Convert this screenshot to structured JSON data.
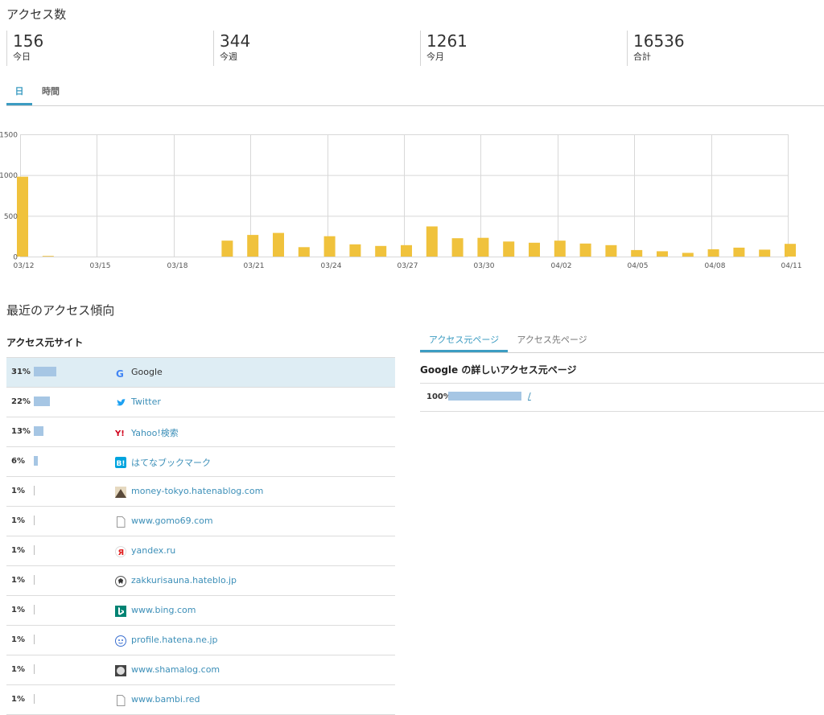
{
  "access": {
    "title": "アクセス数",
    "stats": [
      {
        "value": "156",
        "label": "今日"
      },
      {
        "value": "344",
        "label": "今週"
      },
      {
        "value": "1261",
        "label": "今月"
      },
      {
        "value": "16536",
        "label": "合計"
      }
    ],
    "tabs": [
      {
        "label": "日",
        "active": true
      },
      {
        "label": "時間",
        "active": false
      }
    ]
  },
  "chart_data": {
    "type": "bar",
    "color": "#f0c23c",
    "ylim": [
      0,
      1500
    ],
    "yticks": [
      "1500",
      "1000",
      "500",
      "0"
    ],
    "xticks": [
      "03/12",
      "03/15",
      "03/18",
      "03/21",
      "03/24",
      "03/27",
      "03/30",
      "04/02",
      "04/05",
      "04/08",
      "04/11"
    ],
    "categories": [
      "03/12",
      "03/13",
      "03/14",
      "03/15",
      "03/16",
      "03/17",
      "03/18",
      "03/19",
      "03/20",
      "03/21",
      "03/22",
      "03/23",
      "03/24",
      "03/25",
      "03/26",
      "03/27",
      "03/28",
      "03/29",
      "03/30",
      "03/31",
      "04/01",
      "04/02",
      "04/03",
      "04/04",
      "04/05",
      "04/06",
      "04/07",
      "04/08",
      "04/09",
      "04/10",
      "04/11"
    ],
    "values": [
      980,
      8,
      0,
      0,
      0,
      0,
      0,
      0,
      195,
      265,
      290,
      115,
      250,
      150,
      130,
      140,
      370,
      225,
      230,
      185,
      170,
      195,
      160,
      140,
      80,
      65,
      45,
      90,
      110,
      85,
      156
    ]
  },
  "trend": {
    "title": "最近のアクセス傾向",
    "sources_title": "アクセス元サイト",
    "sources": [
      {
        "pct": "31%",
        "ratio": 0.31,
        "name": "Google",
        "icon": "google-icon"
      },
      {
        "pct": "22%",
        "ratio": 0.22,
        "name": "Twitter",
        "icon": "twitter-icon"
      },
      {
        "pct": "13%",
        "ratio": 0.13,
        "name": "Yahoo!検索",
        "icon": "yahoo-icon"
      },
      {
        "pct": "6%",
        "ratio": 0.06,
        "name": "はてなブックマーク",
        "icon": "hatena-bookmark-icon"
      },
      {
        "pct": "1%",
        "ratio": 0.01,
        "name": "money-tokyo.hatenablog.com",
        "icon": "mountain-icon"
      },
      {
        "pct": "1%",
        "ratio": 0.01,
        "name": "www.gomo69.com",
        "icon": "page-icon"
      },
      {
        "pct": "1%",
        "ratio": 0.01,
        "name": "yandex.ru",
        "icon": "yandex-icon"
      },
      {
        "pct": "1%",
        "ratio": 0.01,
        "name": "zakkurisauna.hateblo.jp",
        "icon": "avatar-icon"
      },
      {
        "pct": "1%",
        "ratio": 0.01,
        "name": "www.bing.com",
        "icon": "bing-icon"
      },
      {
        "pct": "1%",
        "ratio": 0.01,
        "name": "profile.hatena.ne.jp",
        "icon": "hatena-face-icon"
      },
      {
        "pct": "1%",
        "ratio": 0.01,
        "name": "www.shamalog.com",
        "icon": "circle-avatar-icon"
      },
      {
        "pct": "1%",
        "ratio": 0.01,
        "name": "www.bambi.red",
        "icon": "page-icon"
      }
    ],
    "right_tabs": [
      {
        "label": "アクセス元ページ",
        "active": true
      },
      {
        "label": "アクセス先ページ",
        "active": false
      }
    ],
    "detail_title": "Google の詳しいアクセス元ページ",
    "detail_rows": [
      {
        "pct": "100%",
        "ratio": 1.0,
        "path": "/"
      }
    ]
  }
}
